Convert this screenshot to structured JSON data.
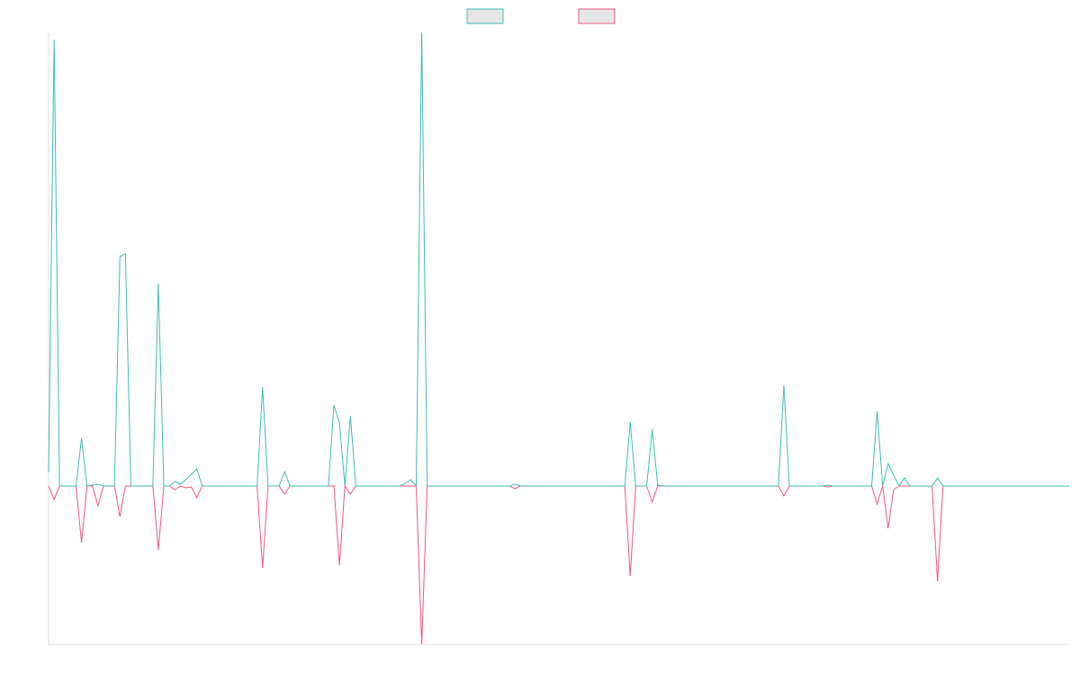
{
  "chart_data": {
    "type": "line",
    "series": [
      {
        "color": "#3dbdb4",
        "values": [
          15,
          496,
          0,
          0,
          0,
          0,
          53,
          0,
          1,
          2,
          0,
          0,
          0,
          255,
          258,
          0,
          0,
          0,
          0,
          0,
          225,
          0,
          0,
          5,
          2,
          7,
          13,
          19,
          0,
          0,
          0,
          0,
          0,
          0,
          0,
          0,
          0,
          0,
          0,
          110,
          0,
          0,
          0,
          16,
          0,
          0,
          0,
          0,
          0,
          0,
          0,
          0,
          90,
          70,
          0,
          78,
          0,
          0,
          0,
          0,
          0,
          0,
          0,
          0,
          0,
          3,
          7,
          0,
          504,
          0,
          0,
          0,
          0,
          0,
          0,
          0,
          0,
          0,
          0,
          0,
          0,
          0,
          0,
          0,
          0,
          2,
          0,
          0,
          0,
          0,
          0,
          0,
          0,
          0,
          0,
          0,
          0,
          0,
          0,
          0,
          0,
          0,
          0,
          0,
          0,
          0,
          71,
          0,
          0,
          0,
          63,
          1,
          0,
          0,
          0,
          0,
          0,
          0,
          0,
          0,
          0,
          0,
          0,
          0,
          0,
          0,
          0,
          0,
          0,
          0,
          0,
          0,
          0,
          0,
          112,
          0,
          0,
          0,
          0,
          0,
          0,
          0,
          1,
          0,
          0,
          0,
          0,
          0,
          0,
          0,
          0,
          83,
          0,
          25,
          12,
          0,
          9,
          0,
          0,
          0,
          0,
          0,
          9,
          0,
          0,
          0,
          0,
          0,
          0,
          0,
          0,
          0,
          0,
          0,
          0,
          0,
          0,
          0,
          0,
          0,
          0,
          0,
          0,
          0,
          0,
          0,
          0
        ]
      },
      {
        "color": "#f2557c",
        "values": [
          0,
          -15,
          0,
          0,
          0,
          0,
          -63,
          0,
          0,
          -22,
          0,
          0,
          0,
          -34,
          0,
          0,
          0,
          0,
          0,
          0,
          -71,
          0,
          0,
          -4,
          0,
          -2,
          -1,
          -13,
          0,
          0,
          0,
          0,
          0,
          0,
          0,
          0,
          0,
          0,
          0,
          -91,
          0,
          0,
          0,
          -9,
          0,
          0,
          0,
          0,
          0,
          0,
          0,
          0,
          0,
          -88,
          0,
          -9,
          0,
          0,
          0,
          0,
          0,
          0,
          0,
          0,
          0,
          0,
          0,
          0,
          -176,
          0,
          0,
          0,
          0,
          0,
          0,
          0,
          0,
          0,
          0,
          0,
          0,
          0,
          0,
          0,
          0,
          -3,
          0,
          0,
          0,
          0,
          0,
          0,
          0,
          0,
          0,
          0,
          0,
          0,
          0,
          0,
          0,
          0,
          0,
          0,
          0,
          0,
          -100,
          0,
          0,
          0,
          -18,
          0,
          0,
          0,
          0,
          0,
          0,
          0,
          0,
          0,
          0,
          0,
          0,
          0,
          0,
          0,
          0,
          0,
          0,
          0,
          0,
          0,
          0,
          0,
          -11,
          0,
          0,
          0,
          0,
          0,
          0,
          0,
          -1,
          0,
          0,
          0,
          0,
          0,
          0,
          0,
          0,
          -20,
          0,
          -47,
          -4,
          0,
          0,
          0,
          0,
          0,
          0,
          0,
          -106,
          0,
          0,
          0,
          0,
          0,
          0,
          0,
          0,
          0,
          0,
          0,
          0,
          0,
          0,
          0,
          0,
          0,
          0,
          0,
          0,
          0,
          0,
          0,
          0
        ]
      }
    ],
    "ylim": [
      -176,
      504
    ]
  }
}
